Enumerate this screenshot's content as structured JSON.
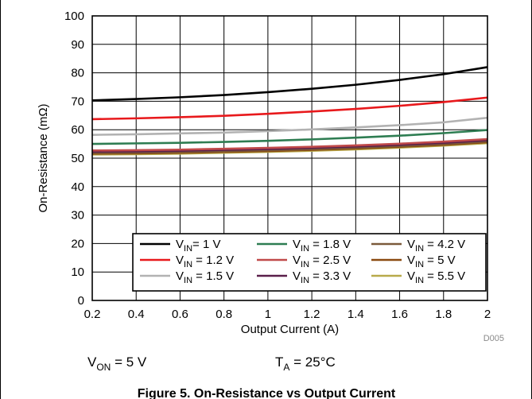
{
  "chart_data": {
    "type": "line",
    "title": "",
    "xlabel": "Output Current (A)",
    "ylabel": "On-Resistance (mΩ)",
    "xlim": [
      0.2,
      2
    ],
    "ylim": [
      0,
      100
    ],
    "xticks": [
      0.2,
      0.4,
      0.6,
      0.8,
      1,
      1.2,
      1.4,
      1.6,
      1.8,
      2
    ],
    "yticks": [
      0,
      10,
      20,
      30,
      40,
      50,
      60,
      70,
      80,
      90,
      100
    ],
    "grid": true,
    "legend_position": "bottom-right",
    "x": [
      0.2,
      0.4,
      0.6,
      0.8,
      1.0,
      1.2,
      1.4,
      1.6,
      1.8,
      2.0
    ],
    "series": [
      {
        "name": "V_IN= 1 V",
        "color": "#000000",
        "values": [
          70.3,
          70.8,
          71.4,
          72.2,
          73.2,
          74.4,
          75.8,
          77.5,
          79.5,
          82.0
        ]
      },
      {
        "name": "V_IN = 1.2 V",
        "color": "#e8191c",
        "values": [
          63.7,
          64.0,
          64.4,
          64.9,
          65.6,
          66.4,
          67.3,
          68.4,
          69.7,
          71.3
        ]
      },
      {
        "name": "V_IN = 1.5 V",
        "color": "#b2b2b2",
        "values": [
          58.2,
          58.4,
          58.7,
          59.0,
          59.5,
          60.1,
          60.8,
          61.6,
          62.6,
          64.2
        ]
      },
      {
        "name": "V_IN = 1.8 V",
        "color": "#2e7d52",
        "values": [
          55.0,
          55.2,
          55.4,
          55.7,
          56.1,
          56.6,
          57.2,
          57.9,
          58.8,
          59.9
        ]
      },
      {
        "name": "V_IN = 2.5 V",
        "color": "#c04a4a",
        "values": [
          52.7,
          52.8,
          53.0,
          53.3,
          53.6,
          54.0,
          54.5,
          55.1,
          55.8,
          56.7
        ]
      },
      {
        "name": "V_IN = 3.3 V",
        "color": "#5a1f4a",
        "values": [
          52.3,
          52.4,
          52.6,
          52.9,
          53.2,
          53.6,
          54.1,
          54.7,
          55.4,
          56.3
        ]
      },
      {
        "name": "V_IN = 4.2 V",
        "color": "#7a5a3a",
        "values": [
          51.9,
          52.0,
          52.2,
          52.5,
          52.8,
          53.2,
          53.7,
          54.3,
          55.0,
          55.9
        ]
      },
      {
        "name": "V_IN = 5 V",
        "color": "#8a4a10",
        "values": [
          51.6,
          51.7,
          51.9,
          52.2,
          52.5,
          52.9,
          53.4,
          54.0,
          54.7,
          55.6
        ]
      },
      {
        "name": "V_IN = 5.5 V",
        "color": "#b8aa4a",
        "values": [
          51.3,
          51.4,
          51.6,
          51.9,
          52.2,
          52.6,
          53.1,
          53.7,
          54.4,
          55.3
        ]
      }
    ]
  },
  "legend_items": [
    {
      "pre": "V",
      "sub": "IN",
      "post": "= 1 V",
      "color": "#000000"
    },
    {
      "pre": "V",
      "sub": "IN",
      "post": " = 1.2 V",
      "color": "#e8191c"
    },
    {
      "pre": "V",
      "sub": "IN",
      "post": " = 1.5 V",
      "color": "#b2b2b2"
    },
    {
      "pre": "V",
      "sub": "IN",
      "post": " = 1.8 V",
      "color": "#2e7d52"
    },
    {
      "pre": "V",
      "sub": "IN",
      "post": " = 2.5 V",
      "color": "#c04a4a"
    },
    {
      "pre": "V",
      "sub": "IN",
      "post": " = 3.3 V",
      "color": "#5a1f4a"
    },
    {
      "pre": "V",
      "sub": "IN",
      "post": " = 4.2 V",
      "color": "#7a5a3a"
    },
    {
      "pre": "V",
      "sub": "IN",
      "post": " = 5 V",
      "color": "#8a4a10"
    },
    {
      "pre": "V",
      "sub": "IN",
      "post": " = 5.5 V",
      "color": "#b8aa4a"
    }
  ],
  "code_label": "D005",
  "conditions": {
    "von": {
      "pre": "V",
      "sub": "ON",
      "post": " = 5 V"
    },
    "ta": {
      "pre": "T",
      "sub": "A",
      "post": " = 25°C"
    }
  },
  "caption": "Figure 5. On-Resistance vs Output Current"
}
